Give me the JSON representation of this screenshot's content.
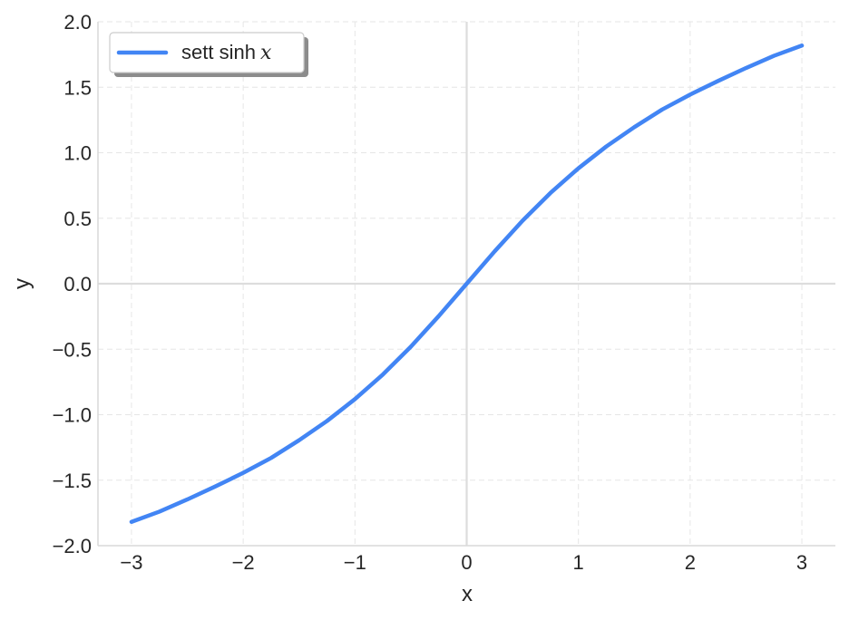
{
  "chart_data": {
    "type": "line",
    "title": "",
    "xlabel": "x",
    "ylabel": "y",
    "xlim": [
      -3.3,
      3.3
    ],
    "ylim": [
      -2.0,
      2.0
    ],
    "x_ticks": [
      -3,
      -2,
      -1,
      0,
      1,
      2,
      3
    ],
    "x_tick_labels": [
      "−3",
      "−2",
      "−1",
      "0",
      "1",
      "2",
      "3"
    ],
    "y_ticks": [
      -2.0,
      -1.5,
      -1.0,
      -0.5,
      0.0,
      0.5,
      1.0,
      1.5,
      2.0
    ],
    "y_tick_labels": [
      "−2.0",
      "−1.5",
      "−1.0",
      "−0.5",
      "0.0",
      "0.5",
      "1.0",
      "1.5",
      "2.0"
    ],
    "grid": true,
    "legend_position": "top-left",
    "series": [
      {
        "name": "sett sinh x",
        "legend_text": "sett sinh",
        "legend_var": "x",
        "color": "#4285f4",
        "x": [
          -3.0,
          -2.75,
          -2.5,
          -2.25,
          -2.0,
          -1.75,
          -1.5,
          -1.25,
          -1.0,
          -0.75,
          -0.5,
          -0.25,
          0.0,
          0.25,
          0.5,
          0.75,
          1.0,
          1.25,
          1.5,
          1.75,
          2.0,
          2.25,
          2.5,
          2.75,
          3.0
        ],
        "y": [
          -1.818,
          -1.74,
          -1.647,
          -1.548,
          -1.444,
          -1.33,
          -1.195,
          -1.048,
          -0.881,
          -0.693,
          -0.481,
          -0.247,
          0.0,
          0.247,
          0.481,
          0.693,
          0.881,
          1.048,
          1.195,
          1.33,
          1.444,
          1.548,
          1.647,
          1.74,
          1.818
        ]
      }
    ],
    "reference_lines": [
      {
        "axis": "x",
        "value": 0
      },
      {
        "axis": "y",
        "value": 0
      }
    ]
  }
}
